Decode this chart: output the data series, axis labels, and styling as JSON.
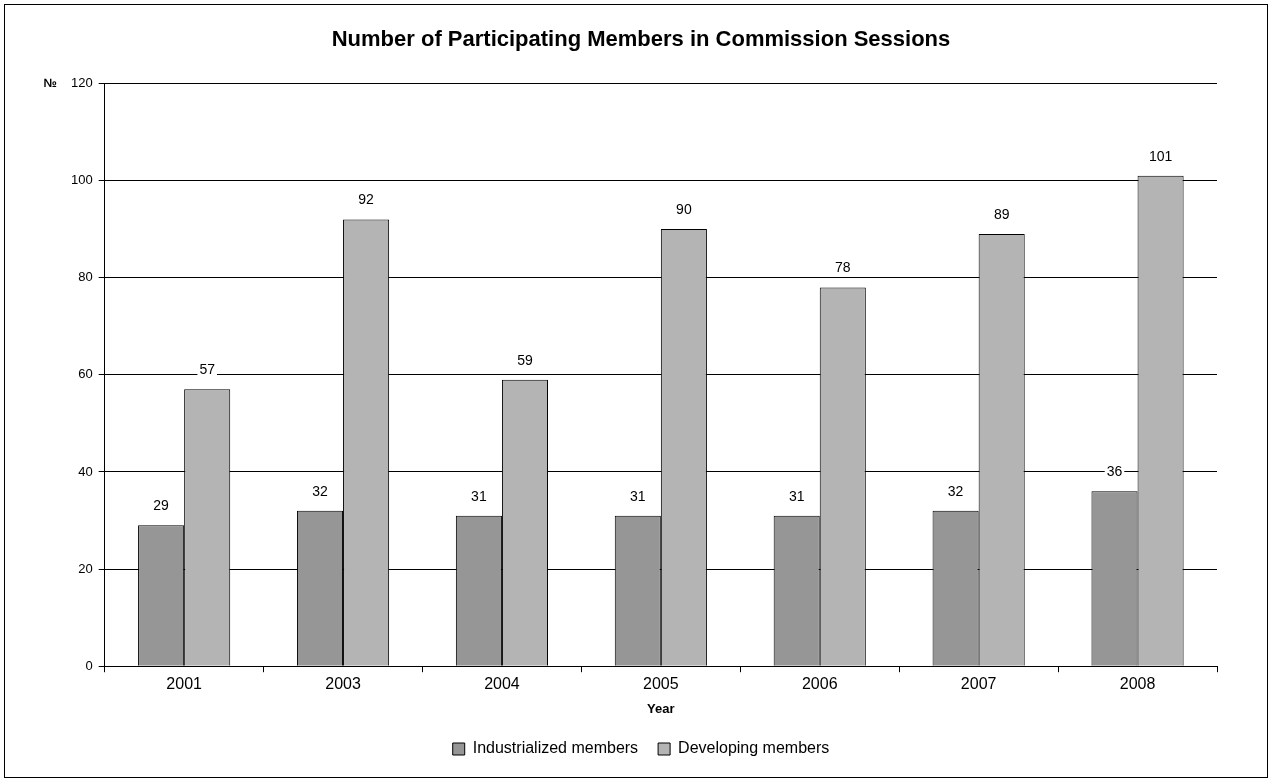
{
  "chart_data": {
    "type": "bar",
    "title": "Number of Participating Members in Commission Sessions",
    "xlabel": "Year",
    "ylabel": "№",
    "categories": [
      "2001",
      "2003",
      "2004",
      "2005",
      "2006",
      "2007",
      "2008"
    ],
    "series": [
      {
        "name": "Industrialized members",
        "color": "#969696",
        "values": [
          29,
          32,
          31,
          31,
          31,
          32,
          36
        ]
      },
      {
        "name": "Developing members",
        "color": "#b4b4b4",
        "values": [
          57,
          92,
          59,
          90,
          78,
          89,
          101
        ]
      }
    ],
    "ylim": [
      0,
      120
    ],
    "yticks": [
      0,
      20,
      40,
      60,
      80,
      100,
      120
    ],
    "grid": "y",
    "legend": "bottom",
    "data_labels": true
  }
}
